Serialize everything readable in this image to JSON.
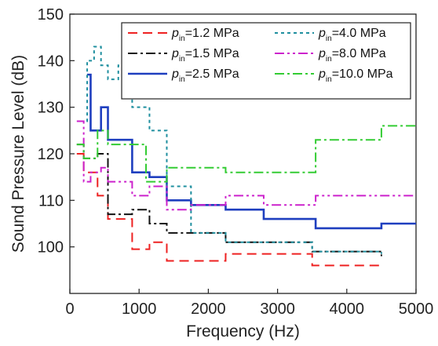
{
  "chart_data": {
    "type": "line",
    "xlabel": "Frequency (Hz)",
    "ylabel": "Sound Pressure Level (dB)",
    "xlim": [
      0,
      5000
    ],
    "ylim": [
      90,
      150
    ],
    "xticks": [
      0,
      1000,
      2000,
      3000,
      4000,
      5000
    ],
    "yticks": [
      100,
      110,
      120,
      130,
      140,
      150
    ],
    "grid": false,
    "legend_position": "top-right",
    "series": [
      {
        "name": "p_in=1.2 MPa",
        "sym": "p",
        "sub": "in",
        "val": "=1.2 MPa",
        "color": "#ee2222",
        "dash": "12,7",
        "x": [
          100,
          200,
          400,
          550,
          900,
          1150,
          1400,
          2250,
          3500,
          4500
        ],
        "y": [
          120,
          116,
          111,
          106,
          99.5,
          101,
          97,
          98.5,
          96,
          96
        ]
      },
      {
        "name": "p_in=1.5 MPa",
        "sym": "p",
        "sub": "in",
        "val": "=1.5 MPa",
        "color": "#111111",
        "dash": "12,4,3,4",
        "x": [
          100,
          200,
          400,
          550,
          900,
          1150,
          1400,
          2250,
          3500,
          4500
        ],
        "y": [
          122,
          119,
          120,
          107,
          108,
          105,
          103,
          101,
          99,
          98
        ]
      },
      {
        "name": "p_in=2.5 MPa",
        "sym": "p",
        "sub": "in",
        "val": "=2.5 MPa",
        "color": "#1f3fbf",
        "dash": "",
        "x": [
          250,
          300,
          450,
          550,
          900,
          1150,
          1400,
          1750,
          2250,
          2800,
          3550,
          4500,
          5000
        ],
        "y": [
          137,
          125,
          130,
          123,
          116,
          115,
          110,
          109,
          108,
          106,
          104,
          105,
          105
        ]
      },
      {
        "name": "p_in=4.0 MPa",
        "sym": "p",
        "sub": "in",
        "val": "=4.0 MPa",
        "color": "#1f8f9f",
        "dash": "4,4",
        "x": [
          150,
          250,
          350,
          450,
          550,
          700,
          900,
          1150,
          1400,
          1750,
          2250,
          3500,
          4500
        ],
        "y": [
          127,
          140,
          143,
          139,
          136,
          139,
          130,
          125,
          113,
          103,
          101,
          99,
          98.5
        ]
      },
      {
        "name": "p_in=8.0 MPa",
        "sym": "p",
        "sub": "in",
        "val": "=8.0 MPa",
        "color": "#cc22cc",
        "dash": "12,4,3,4,3,4",
        "x": [
          100,
          200,
          300,
          450,
          550,
          900,
          1150,
          1400,
          1750,
          2250,
          2800,
          3550,
          5000
        ],
        "y": [
          127,
          114,
          116,
          117,
          114,
          111,
          113,
          108,
          109,
          111,
          109,
          111,
          111
        ]
      },
      {
        "name": "p_in=10.0 MPa",
        "sym": "p",
        "sub": "in",
        "val": "=10.0 MPa",
        "color": "#33cc33",
        "dash": "12,4,3,4",
        "x": [
          100,
          200,
          400,
          550,
          1100,
          1400,
          2250,
          2800,
          3550,
          4500,
          5000
        ],
        "y": [
          122,
          119,
          125,
          122,
          114,
          117,
          116,
          116,
          123,
          126,
          126
        ]
      }
    ]
  }
}
